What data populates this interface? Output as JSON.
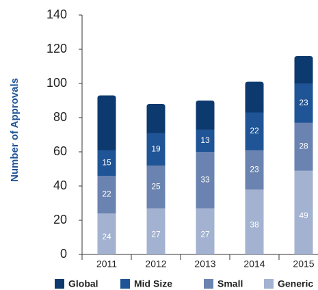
{
  "chart_data": {
    "type": "stacked_bar",
    "y_label": "Number of Approvals",
    "categories": [
      "2011",
      "2012",
      "2013",
      "2014",
      "2015"
    ],
    "series": [
      {
        "name": "Global",
        "color": "#0d3a6e",
        "values": [
          32,
          17,
          17,
          18,
          16
        ],
        "show_values": false
      },
      {
        "name": "Mid Size",
        "color": "#1f5496",
        "values": [
          15,
          19,
          13,
          22,
          23
        ],
        "show_values": true
      },
      {
        "name": "Small",
        "color": "#6a83b0",
        "values": [
          22,
          25,
          33,
          23,
          28
        ],
        "show_values": true
      },
      {
        "name": "Generic",
        "color": "#a3b2d0",
        "values": [
          24,
          27,
          27,
          38,
          49
        ],
        "show_values": true
      }
    ],
    "ylim": [
      0,
      140
    ],
    "yticks": [
      0,
      20,
      40,
      60,
      80,
      100,
      120,
      140
    ]
  }
}
